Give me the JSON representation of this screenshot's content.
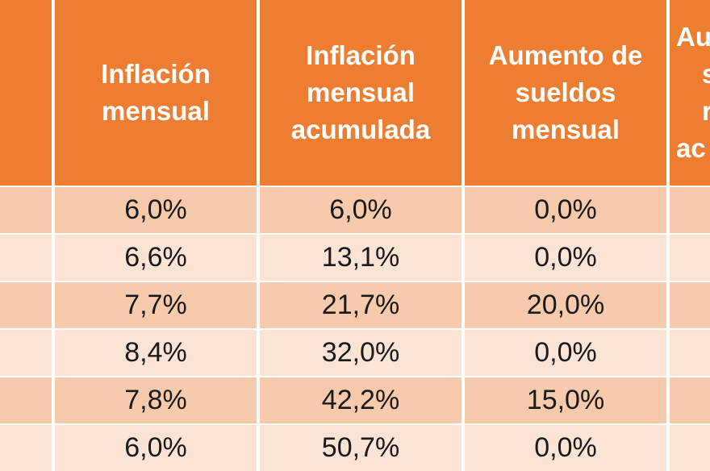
{
  "header": {
    "col1": [
      "Inflación",
      "mensual"
    ],
    "col2": [
      "Inflación",
      "mensual",
      "acumulada"
    ],
    "col3": [
      "Aumento de",
      "sueldos",
      "mensual"
    ],
    "col4": [
      "Au",
      "s",
      "r",
      "ac"
    ]
  },
  "rows": [
    {
      "inflacion_mensual": "6,0%",
      "inflacion_acumulada": "6,0%",
      "aumento_sueldos": "0,0%"
    },
    {
      "inflacion_mensual": "6,6%",
      "inflacion_acumulada": "13,1%",
      "aumento_sueldos": "0,0%"
    },
    {
      "inflacion_mensual": "7,7%",
      "inflacion_acumulada": "21,7%",
      "aumento_sueldos": "20,0%"
    },
    {
      "inflacion_mensual": "8,4%",
      "inflacion_acumulada": "32,0%",
      "aumento_sueldos": "0,0%"
    },
    {
      "inflacion_mensual": "7,8%",
      "inflacion_acumulada": "42,2%",
      "aumento_sueldos": "15,0%"
    },
    {
      "inflacion_mensual": "6,0%",
      "inflacion_acumulada": "50,7%",
      "aumento_sueldos": "0,0%"
    }
  ],
  "colors": {
    "header": "#ec7d31",
    "row_dark": "#f7caac",
    "row_light": "#fbe4d5",
    "header_text": "#ffffff"
  }
}
